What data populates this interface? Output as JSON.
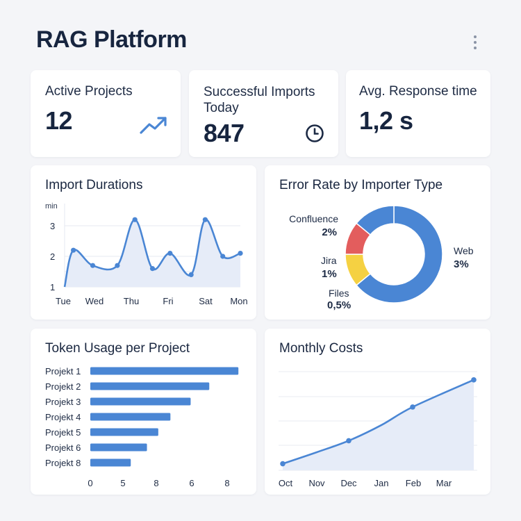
{
  "header": {
    "title": "RAG Platform",
    "menu_icon": "more-vertical-icon"
  },
  "kpis": [
    {
      "label": "Active Projects",
      "value": "12",
      "icon": "trending-up-icon"
    },
    {
      "label": "Successful Imports Today",
      "value": "847",
      "icon": "clock-icon"
    },
    {
      "label": "Avg. Response time",
      "value": "1,2 s"
    }
  ],
  "import_durations": {
    "title": "Import Durations"
  },
  "error_rate": {
    "title": "Error Rate by Importer Type",
    "labels": [
      {
        "name": "Confluence",
        "value": "2%"
      },
      {
        "name": "Jira",
        "value": "1%"
      },
      {
        "name": "Files",
        "value": "0,5%"
      },
      {
        "name": "Web",
        "value": "3%"
      }
    ]
  },
  "token_usage": {
    "title": "Token Usage per Project"
  },
  "monthly_costs": {
    "title": "Monthly Costs"
  },
  "colors": {
    "accent": "#4a86d4",
    "fill": "#e6ecf8",
    "red": "#e35d5d",
    "yellow": "#f5d142",
    "text": "#17253f"
  },
  "chart_data": [
    {
      "id": "import_durations",
      "type": "line",
      "title": "Import Durations",
      "ylabel": "min",
      "x": [
        "Tue",
        "Wed",
        "Thu",
        "Fri",
        "Sat",
        "Mon"
      ],
      "ytick_labels": [
        "1",
        "2",
        "3"
      ],
      "ylim": [
        1,
        3.5
      ],
      "xlim": [
        0,
        5
      ],
      "points": [
        [
          0,
          1.0
        ],
        [
          0.25,
          2.2
        ],
        [
          0.8,
          1.7
        ],
        [
          1.5,
          1.7
        ],
        [
          2.0,
          3.2
        ],
        [
          2.5,
          1.6
        ],
        [
          3.0,
          2.1
        ],
        [
          3.6,
          1.4
        ],
        [
          4.0,
          3.2
        ],
        [
          4.5,
          2.0
        ],
        [
          5.0,
          2.1
        ]
      ],
      "grid": true
    },
    {
      "id": "error_rate",
      "type": "pie",
      "title": "Error Rate by Importer Type",
      "donut": true,
      "categories": [
        "Web",
        "Files",
        "Jira",
        "Confluence"
      ],
      "values": [
        64,
        11,
        11,
        14
      ],
      "value_labels": [
        "3%",
        "0,5%",
        "1%",
        "2%"
      ],
      "colors": [
        "#4a86d4",
        "#f5d142",
        "#e35d5d",
        "#4a86d4"
      ]
    },
    {
      "id": "token_usage",
      "type": "bar",
      "orientation": "horizontal",
      "title": "Token Usage per Project",
      "categories": [
        "Projekt 1",
        "Projekt 2",
        "Projekt 3",
        "Projekt 4",
        "Projekt 5",
        "Projekt 6",
        "Projekt 8"
      ],
      "values": [
        9.15,
        7.35,
        6.2,
        4.95,
        4.2,
        3.5,
        2.5
      ],
      "xtick_labels": [
        "0",
        "5",
        "8",
        "6",
        "8"
      ],
      "xlim": [
        0,
        10
      ]
    },
    {
      "id": "monthly_costs",
      "type": "area",
      "title": "Monthly Costs",
      "x": [
        "Oct",
        "Nov",
        "Dec",
        "Jan",
        "Feb",
        "Mar"
      ],
      "values": [
        0.8,
        2.2,
        3.6,
        5.5,
        7.7,
        11.0
      ],
      "ylim": [
        0,
        12
      ],
      "grid": true
    }
  ]
}
